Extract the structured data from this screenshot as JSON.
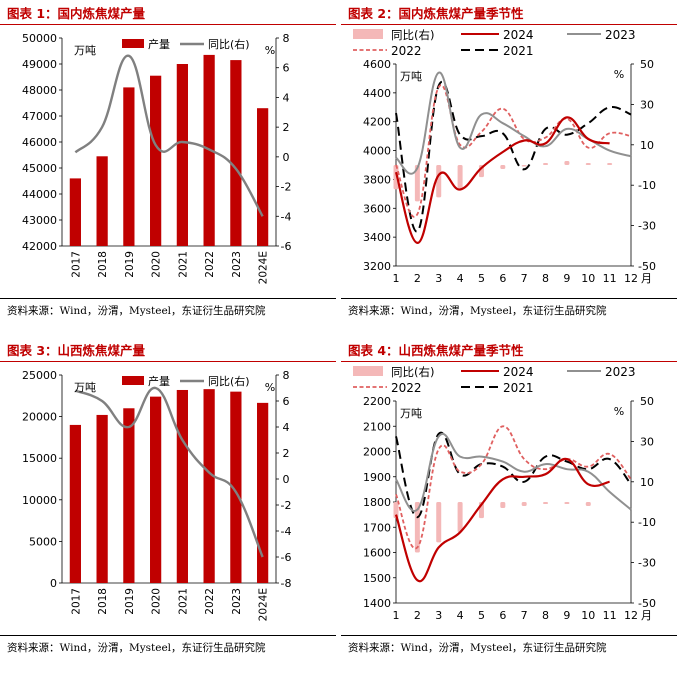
{
  "charts": [
    {
      "title": "图表 1：国内炼焦煤产量",
      "source": "资料来源：Wind，汾渭，Mysteel，东证衍生品研究院",
      "unit_left": "万吨",
      "unit_right": "%",
      "legend": [
        "产量",
        "同比(右)"
      ]
    },
    {
      "title": "图表 2：国内炼焦煤产量季节性",
      "source": "资料来源：Wind，汾渭，Mysteel，东证衍生品研究院",
      "unit_left": "万吨",
      "unit_right": "%",
      "x_suffix": "月",
      "legend": [
        "同比(右)",
        "2024",
        "2023",
        "2022",
        "2021"
      ]
    },
    {
      "title": "图表 3：山西炼焦煤产量",
      "source": "资料来源：Wind，汾渭，Mysteel，东证衍生品研究院",
      "unit_left": "万吨",
      "unit_right": "%",
      "legend": [
        "产量",
        "同比(右)"
      ]
    },
    {
      "title": "图表 4：山西炼焦煤产量季节性",
      "source": "资料来源：Wind，汾渭，Mysteel，东证衍生品研究院",
      "unit_left": "万吨",
      "unit_right": "%",
      "x_suffix": "月",
      "legend": [
        "同比(右)",
        "2024",
        "2023",
        "2022",
        "2021"
      ]
    }
  ],
  "chart_data": [
    {
      "type": "bar",
      "categories": [
        "2017",
        "2018",
        "2019",
        "2020",
        "2021",
        "2022",
        "2023",
        "2024E"
      ],
      "series": [
        {
          "name": "产量",
          "axis": "left",
          "values": [
            44600,
            45450,
            48100,
            48550,
            49000,
            49350,
            49150,
            47300
          ]
        },
        {
          "name": "同比(右)",
          "axis": "right",
          "kind": "line",
          "values": [
            0.3,
            2.0,
            6.8,
            0.8,
            1.0,
            0.5,
            -0.8,
            -4.0
          ]
        }
      ],
      "ylim": [
        42000,
        50000
      ],
      "yticks": [
        42000,
        43000,
        44000,
        45000,
        46000,
        47000,
        48000,
        49000,
        50000
      ],
      "y2lim": [
        -6,
        8
      ],
      "y2ticks": [
        -6,
        -4,
        -2,
        0,
        2,
        4,
        6,
        8
      ],
      "colors": {
        "bar": "#c00000",
        "line": "#808080"
      }
    },
    {
      "type": "line",
      "x": [
        1,
        2,
        3,
        4,
        5,
        6,
        7,
        8,
        9,
        10,
        11,
        12
      ],
      "series": [
        {
          "name": "同比(右)",
          "axis": "right",
          "kind": "bar",
          "values": [
            -12,
            -18,
            -16,
            -12,
            -6,
            -2,
            0,
            1,
            2,
            1,
            1,
            null
          ]
        },
        {
          "name": "2024",
          "axis": "left",
          "values": [
            3850,
            3360,
            3830,
            3730,
            3880,
            3990,
            4070,
            4050,
            4230,
            4080,
            4050,
            null
          ]
        },
        {
          "name": "2023",
          "axis": "left",
          "values": [
            3950,
            3880,
            4540,
            4020,
            4250,
            4190,
            4100,
            4030,
            4150,
            4080,
            4000,
            3960
          ]
        },
        {
          "name": "2022",
          "axis": "left",
          "values": [
            3900,
            3560,
            4440,
            4040,
            4130,
            4290,
            4080,
            4090,
            4220,
            4020,
            4120,
            4100
          ]
        },
        {
          "name": "2021",
          "axis": "left",
          "values": [
            4260,
            3440,
            4450,
            4110,
            4100,
            4120,
            3870,
            4150,
            4110,
            4190,
            4300,
            4250
          ]
        }
      ],
      "ylim": [
        3200,
        4600
      ],
      "yticks": [
        3200,
        3400,
        3600,
        3800,
        4000,
        4200,
        4400,
        4600
      ],
      "y2lim": [
        -50,
        50
      ],
      "y2ticks": [
        -50,
        -30,
        -10,
        10,
        30,
        50
      ],
      "colors": {
        "yoy": "#f4b8b8",
        "2024": "#c00000",
        "2023": "#909090",
        "2022": "#e06060",
        "2021": "#000000"
      }
    },
    {
      "type": "bar",
      "categories": [
        "2017",
        "2018",
        "2019",
        "2020",
        "2021",
        "2022",
        "2023",
        "2024E"
      ],
      "series": [
        {
          "name": "产量",
          "axis": "left",
          "values": [
            19000,
            20200,
            21000,
            22400,
            23200,
            23300,
            23000,
            21650
          ]
        },
        {
          "name": "同比(右)",
          "axis": "right",
          "kind": "line",
          "values": [
            6.8,
            6.0,
            4.0,
            7.0,
            3.0,
            0.5,
            -1.0,
            -6.0
          ]
        }
      ],
      "ylim": [
        0,
        25000
      ],
      "yticks": [
        0,
        5000,
        10000,
        15000,
        20000,
        25000
      ],
      "y2lim": [
        -8,
        8
      ],
      "y2ticks": [
        -8,
        -6,
        -4,
        -2,
        0,
        2,
        4,
        6,
        8
      ],
      "colors": {
        "bar": "#c00000",
        "line": "#808080"
      }
    },
    {
      "type": "line",
      "x": [
        1,
        2,
        3,
        4,
        5,
        6,
        7,
        8,
        9,
        10,
        11,
        12
      ],
      "series": [
        {
          "name": "同比(右)",
          "axis": "right",
          "kind": "bar",
          "values": [
            -8,
            -25,
            -20,
            -15,
            -8,
            -3,
            -2,
            -1,
            -1,
            -2,
            null,
            null
          ]
        },
        {
          "name": "2024",
          "axis": "left",
          "values": [
            1750,
            1490,
            1620,
            1680,
            1790,
            1890,
            1900,
            1910,
            1970,
            1870,
            1880,
            null
          ]
        },
        {
          "name": "2023",
          "axis": "left",
          "values": [
            1890,
            1770,
            2060,
            1980,
            1980,
            1960,
            1920,
            1950,
            1930,
            1920,
            1840,
            1770
          ]
        },
        {
          "name": "2022",
          "axis": "left",
          "values": [
            1830,
            1620,
            2010,
            1920,
            1950,
            2100,
            1970,
            1930,
            1970,
            1940,
            1990,
            1890
          ]
        },
        {
          "name": "2021",
          "axis": "left",
          "values": [
            2060,
            1740,
            2070,
            1910,
            1950,
            1940,
            1880,
            1980,
            1960,
            1930,
            1970,
            1870
          ]
        }
      ],
      "ylim": [
        1400,
        2200
      ],
      "yticks": [
        1400,
        1500,
        1600,
        1700,
        1800,
        1900,
        2000,
        2100,
        2200
      ],
      "y2lim": [
        -50,
        50
      ],
      "y2ticks": [
        -50,
        -30,
        -10,
        10,
        30,
        50
      ],
      "colors": {
        "yoy": "#f4b8b8",
        "2024": "#c00000",
        "2023": "#909090",
        "2022": "#e06060",
        "2021": "#000000"
      }
    }
  ]
}
